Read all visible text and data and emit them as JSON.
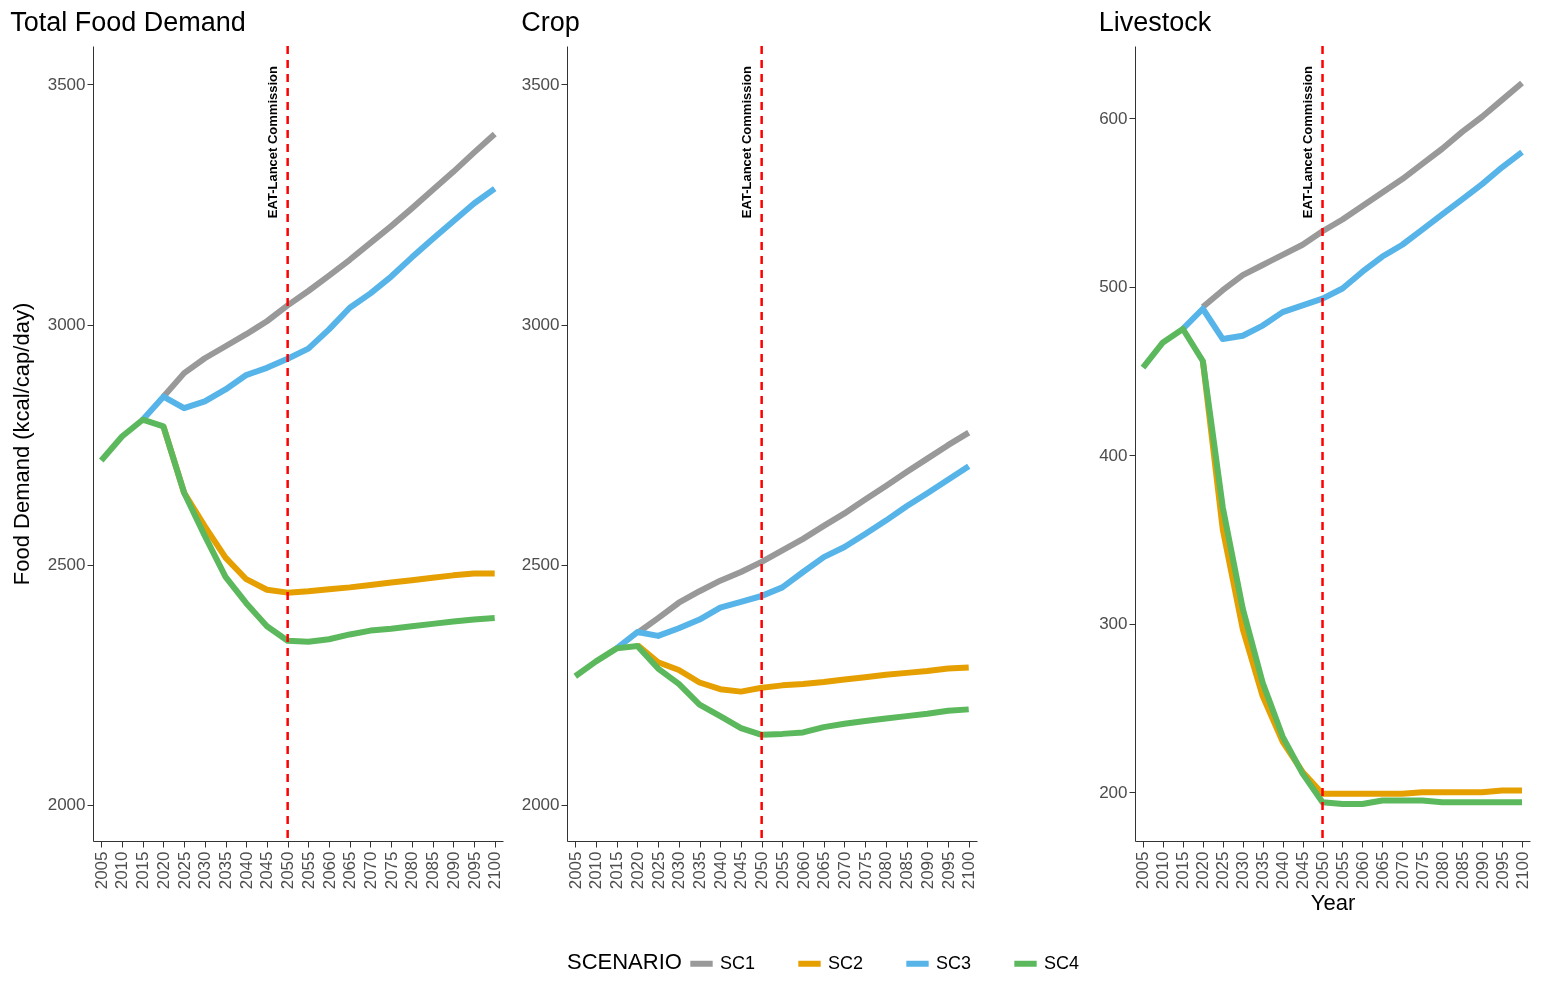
{
  "chart_data": [
    {
      "type": "line",
      "title": "Total Food Demand",
      "ylabel": "Food Demand (kcal/cap/day)",
      "categories": [
        "2005",
        "2010",
        "2015",
        "2020",
        "2025",
        "2030",
        "2035",
        "2040",
        "2045",
        "2050",
        "2055",
        "2060",
        "2065",
        "2070",
        "2075",
        "2080",
        "2085",
        "2090",
        "2095",
        "2100"
      ],
      "ylim": [
        1925,
        3580
      ],
      "yticks": [
        2000,
        2500,
        3000,
        3500
      ],
      "grid": false,
      "legend": false,
      "line_style": "solid",
      "marker": "none",
      "ref_lines": [
        {
          "axis": "x",
          "value": "2050",
          "label": "EAT-Lancet Commission",
          "color": "#ff0000",
          "line_style": "dashed"
        }
      ],
      "series": [
        {
          "color": "#999999",
          "values": [
            null,
            null,
            null,
            2850,
            2899,
            2930,
            2955,
            2980,
            3007,
            3040,
            3070,
            3102,
            3135,
            3170,
            3205,
            3242,
            3280,
            3318,
            3358,
            3397
          ]
        },
        {
          "color": "#e69f00",
          "values": [
            null,
            null,
            null,
            2788,
            2650,
            2580,
            2515,
            2470,
            2448,
            2442,
            2445,
            2449,
            2453,
            2458,
            2463,
            2468,
            2473,
            2478,
            2482,
            2482
          ]
        },
        {
          "color": "#56b4e9",
          "values": [
            null,
            null,
            2802,
            2850,
            2826,
            2840,
            2865,
            2895,
            2910,
            2929,
            2950,
            2990,
            3035,
            3065,
            3100,
            3140,
            3178,
            3215,
            3252,
            3283
          ]
        },
        {
          "color": "#5cb85c",
          "values": [
            2717,
            2767,
            2802,
            2788,
            2650,
            2560,
            2475,
            2420,
            2372,
            2342,
            2340,
            2345,
            2355,
            2363,
            2367,
            2372,
            2377,
            2382,
            2386,
            2389
          ]
        }
      ]
    },
    {
      "type": "line",
      "title": "Crop",
      "categories": [
        "2005",
        "2010",
        "2015",
        "2020",
        "2025",
        "2030",
        "2035",
        "2040",
        "2045",
        "2050",
        "2055",
        "2060",
        "2065",
        "2070",
        "2075",
        "2080",
        "2085",
        "2090",
        "2095",
        "2100"
      ],
      "ylim": [
        1925,
        3580
      ],
      "yticks": [
        2000,
        2500,
        3000,
        3500
      ],
      "grid": false,
      "legend": "bottom",
      "legend_title": "SCENARIO",
      "line_style": "solid",
      "marker": "none",
      "ref_lines": [
        {
          "axis": "x",
          "value": "2050",
          "label": "EAT-Lancet Commission",
          "color": "#ff0000",
          "line_style": "dashed"
        }
      ],
      "series": [
        {
          "name": "SC1",
          "color": "#999999",
          "values": [
            null,
            null,
            null,
            2358,
            2389,
            2421,
            2445,
            2467,
            2485,
            2506,
            2530,
            2554,
            2581,
            2607,
            2636,
            2664,
            2693,
            2721,
            2749,
            2775
          ]
        },
        {
          "name": "SC2",
          "color": "#e69f00",
          "values": [
            null,
            null,
            null,
            2333,
            2297,
            2281,
            2255,
            2241,
            2236,
            2244,
            2249,
            2252,
            2256,
            2261,
            2266,
            2271,
            2275,
            2279,
            2284,
            2286
          ]
        },
        {
          "name": "SC3",
          "color": "#56b4e9",
          "values": [
            null,
            null,
            2326,
            2360,
            2352,
            2368,
            2386,
            2411,
            2423,
            2435,
            2453,
            2485,
            2516,
            2537,
            2564,
            2592,
            2622,
            2649,
            2677,
            2705
          ]
        },
        {
          "name": "SC4",
          "color": "#5cb85c",
          "values": [
            2268,
            2299,
            2326,
            2331,
            2284,
            2252,
            2209,
            2185,
            2160,
            2146,
            2148,
            2151,
            2162,
            2169,
            2175,
            2180,
            2185,
            2190,
            2196,
            2199
          ]
        }
      ]
    },
    {
      "type": "line",
      "title": "Livestock",
      "xlabel": "Year",
      "categories": [
        "2005",
        "2010",
        "2015",
        "2020",
        "2025",
        "2030",
        "2035",
        "2040",
        "2045",
        "2050",
        "2055",
        "2060",
        "2065",
        "2070",
        "2075",
        "2080",
        "2085",
        "2090",
        "2095",
        "2100"
      ],
      "ylim": [
        171,
        643
      ],
      "yticks": [
        200,
        300,
        400,
        500,
        600
      ],
      "grid": false,
      "legend": false,
      "line_style": "solid",
      "marker": "none",
      "ref_lines": [
        {
          "axis": "x",
          "value": "2050",
          "label": "EAT-Lancet Commission",
          "color": "#ff0000",
          "line_style": "dashed"
        }
      ],
      "series": [
        {
          "color": "#999999",
          "values": [
            null,
            null,
            null,
            488,
            498,
            507,
            513,
            519,
            525,
            533,
            540,
            548,
            556,
            564,
            573,
            582,
            592,
            601,
            611,
            621
          ]
        },
        {
          "color": "#e69f00",
          "values": [
            null,
            null,
            null,
            456,
            356,
            297,
            257,
            230,
            212,
            199,
            199,
            199,
            199,
            199,
            200,
            200,
            200,
            200,
            201,
            201
          ]
        },
        {
          "color": "#56b4e9",
          "values": [
            null,
            null,
            475,
            487,
            469,
            471,
            477,
            485,
            489,
            493,
            499,
            509,
            518,
            525,
            534,
            543,
            552,
            561,
            571,
            580
          ]
        },
        {
          "color": "#5cb85c",
          "values": [
            452,
            467,
            475,
            456,
            369,
            309,
            265,
            233,
            211,
            194,
            193,
            193,
            195,
            195,
            195,
            194,
            194,
            194,
            194,
            194
          ]
        }
      ]
    }
  ]
}
